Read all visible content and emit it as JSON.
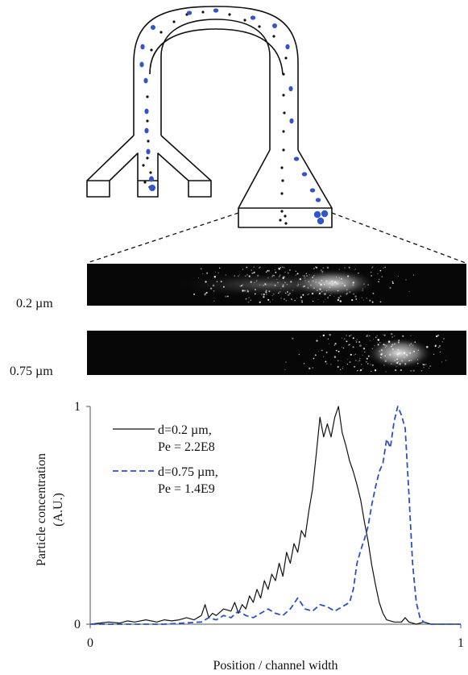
{
  "figure": {
    "strip_labels": [
      "0.2 µm",
      "0.75 µm"
    ]
  },
  "chart_data": {
    "type": "line",
    "xlabel": "Position / channel width",
    "ylabel": [
      "Particle concentration",
      "(A.U.)"
    ],
    "xlim": [
      0,
      1
    ],
    "ylim": [
      0,
      1
    ],
    "x_ticks": [
      "0",
      "1"
    ],
    "y_ticks": [
      "0",
      "1"
    ],
    "grid": false,
    "legend_position": "top-left",
    "series": [
      {
        "name": [
          "d=0.2 µm,",
          "Pe = 2.2E8"
        ],
        "color": "#111111",
        "style": "solid",
        "x": [
          0,
          0.05,
          0.08,
          0.1,
          0.12,
          0.15,
          0.18,
          0.2,
          0.22,
          0.24,
          0.26,
          0.28,
          0.3,
          0.31,
          0.32,
          0.33,
          0.34,
          0.36,
          0.38,
          0.39,
          0.4,
          0.41,
          0.42,
          0.43,
          0.44,
          0.45,
          0.46,
          0.47,
          0.48,
          0.49,
          0.5,
          0.51,
          0.52,
          0.53,
          0.54,
          0.55,
          0.56,
          0.57,
          0.58,
          0.59,
          0.6,
          0.61,
          0.62,
          0.63,
          0.64,
          0.65,
          0.66,
          0.67,
          0.68,
          0.69,
          0.7,
          0.71,
          0.72,
          0.73,
          0.74,
          0.75,
          0.76,
          0.77,
          0.78,
          0.79,
          0.8,
          0.82,
          0.84,
          0.85,
          0.86,
          0.88,
          0.9,
          0.92,
          1.0
        ],
        "y": [
          0,
          0.01,
          0.005,
          0.015,
          0.01,
          0.02,
          0.01,
          0.02,
          0.015,
          0.02,
          0.03,
          0.02,
          0.04,
          0.09,
          0.03,
          0.05,
          0.04,
          0.07,
          0.06,
          0.1,
          0.05,
          0.09,
          0.07,
          0.13,
          0.1,
          0.16,
          0.12,
          0.2,
          0.16,
          0.23,
          0.2,
          0.28,
          0.22,
          0.33,
          0.28,
          0.37,
          0.33,
          0.43,
          0.4,
          0.52,
          0.62,
          0.78,
          0.95,
          0.86,
          0.92,
          0.86,
          0.95,
          1.0,
          0.88,
          0.82,
          0.75,
          0.7,
          0.64,
          0.57,
          0.47,
          0.38,
          0.27,
          0.18,
          0.1,
          0.05,
          0.02,
          0.01,
          0.01,
          0.03,
          0.01,
          0.0,
          0.01,
          0.0,
          0.0
        ]
      },
      {
        "name": [
          "d=0.75 µm,",
          "Pe = 1.4E9"
        ],
        "color": "#2b50c8",
        "style": "dashed",
        "x": [
          0,
          0.2,
          0.3,
          0.32,
          0.34,
          0.36,
          0.38,
          0.4,
          0.42,
          0.44,
          0.46,
          0.48,
          0.5,
          0.52,
          0.54,
          0.56,
          0.58,
          0.6,
          0.62,
          0.64,
          0.66,
          0.68,
          0.7,
          0.71,
          0.72,
          0.73,
          0.74,
          0.75,
          0.76,
          0.77,
          0.78,
          0.79,
          0.8,
          0.81,
          0.82,
          0.83,
          0.84,
          0.85,
          0.86,
          0.87,
          0.88,
          0.89,
          0.9,
          0.92,
          0.95,
          1.0
        ],
        "y": [
          0,
          0,
          0.01,
          0.03,
          0.02,
          0.04,
          0.03,
          0.06,
          0.04,
          0.03,
          0.05,
          0.07,
          0.05,
          0.04,
          0.07,
          0.12,
          0.07,
          0.06,
          0.09,
          0.08,
          0.06,
          0.08,
          0.1,
          0.16,
          0.28,
          0.34,
          0.39,
          0.45,
          0.55,
          0.63,
          0.7,
          0.74,
          0.85,
          0.81,
          0.93,
          1.0,
          0.96,
          0.9,
          0.6,
          0.28,
          0.1,
          0.03,
          0.01,
          0.0,
          0.0,
          0.0
        ]
      }
    ]
  }
}
